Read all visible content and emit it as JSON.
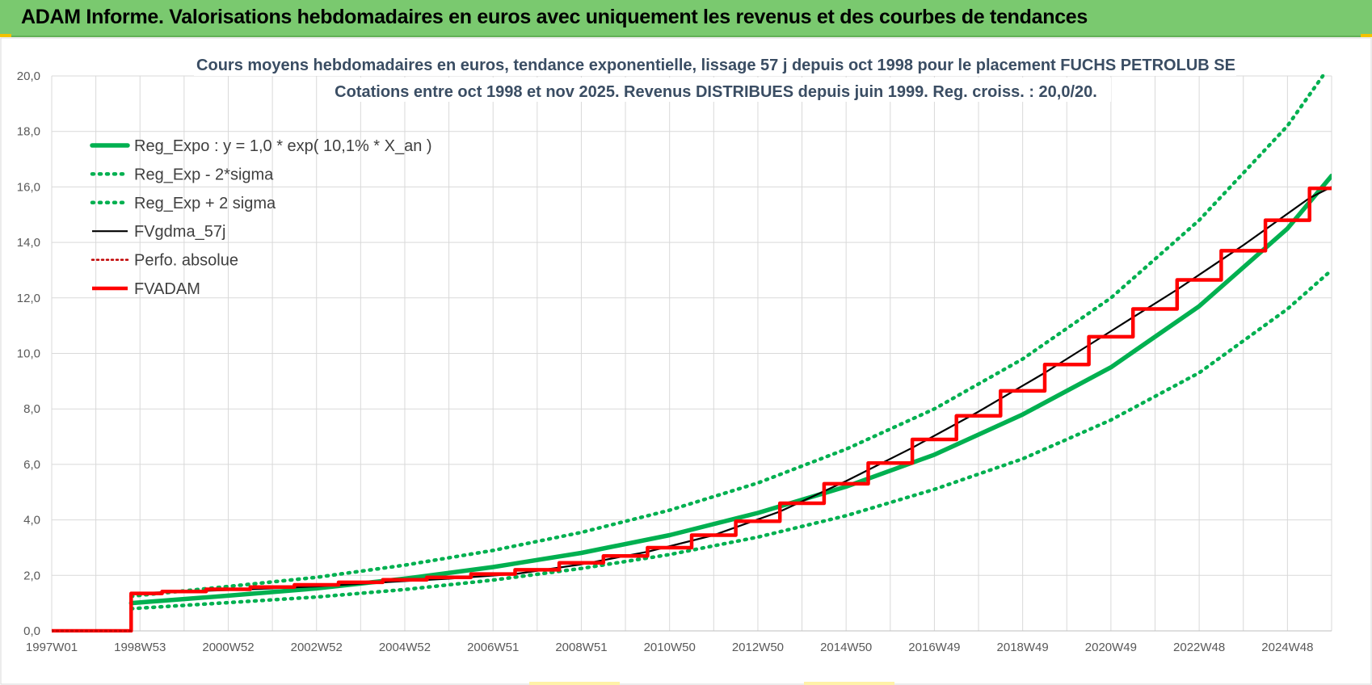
{
  "banner": {
    "title": "ADAM Informe. Valorisations hebdomadaires en euros avec uniquement les revenus et des courbes de tendances"
  },
  "colors": {
    "banner_bg": "#7ac96f",
    "trend_green": "#00b050",
    "gdma_black": "#000000",
    "adam_red": "#ff0000",
    "perf_red_dotted": "#c00000",
    "grid": "#d9d9d9"
  },
  "chart_data": {
    "type": "line",
    "title": "Cours moyens hebdomadaires en euros, tendance exponentielle, lissage 57 j depuis oct 1998 pour le placement FUCHS PETROLUB SE",
    "subtitle": "Cotations entre oct 1998 et nov 2025. Revenus DISTRIBUES depuis juin 1999. Reg. croiss. : 20,0/20.",
    "xlabel": "",
    "ylabel": "",
    "ylim": [
      0,
      20
    ],
    "y_ticks": [
      "0,0",
      "2,0",
      "4,0",
      "6,0",
      "8,0",
      "10,0",
      "12,0",
      "14,0",
      "16,0",
      "18,0",
      "20,0"
    ],
    "x_range": [
      1997.0,
      2026.0
    ],
    "x_ticks": [
      {
        "label": "1997W01",
        "x": 1997.0
      },
      {
        "label": "1998W53",
        "x": 1999.0
      },
      {
        "label": "2000W52",
        "x": 2001.0
      },
      {
        "label": "2002W52",
        "x": 2003.0
      },
      {
        "label": "2004W52",
        "x": 2005.0
      },
      {
        "label": "2006W51",
        "x": 2007.0
      },
      {
        "label": "2008W51",
        "x": 2009.0
      },
      {
        "label": "2010W50",
        "x": 2011.0
      },
      {
        "label": "2012W50",
        "x": 2013.0
      },
      {
        "label": "2014W50",
        "x": 2015.0
      },
      {
        "label": "2016W49",
        "x": 2017.0
      },
      {
        "label": "2018W49",
        "x": 2019.0
      },
      {
        "label": "2020W49",
        "x": 2021.0
      },
      {
        "label": "2022W48",
        "x": 2023.0
      },
      {
        "label": "2024W48",
        "x": 2025.0
      }
    ],
    "grid": true,
    "legend_position": "top-left",
    "legend": [
      "Reg_Expo : y = 1,0 * exp( 10,1% *  X_an )",
      "Reg_Exp - 2*sigma",
      "Reg_Exp + 2 sigma",
      "FVgdma_57j",
      "Perfo. absolue",
      "FVADAM"
    ],
    "series": [
      {
        "name": "Reg_Expo : y = 1,0 * exp( 10,1% *  X_an )",
        "style": "solid",
        "color": "#00b050",
        "x": [
          1998.8,
          2001,
          2003,
          2005,
          2007,
          2009,
          2011,
          2013,
          2015,
          2017,
          2019,
          2021,
          2023,
          2025,
          2026
        ],
        "values": [
          1.0,
          1.27,
          1.53,
          1.88,
          2.3,
          2.81,
          3.45,
          4.25,
          5.2,
          6.35,
          7.8,
          9.5,
          11.7,
          14.5,
          16.4
        ]
      },
      {
        "name": "Reg_Exp - 2*sigma",
        "style": "dotted",
        "color": "#00b050",
        "x": [
          1998.8,
          2001,
          2003,
          2005,
          2007,
          2009,
          2011,
          2013,
          2015,
          2017,
          2019,
          2021,
          2023,
          2025,
          2026
        ],
        "values": [
          0.8,
          1.02,
          1.22,
          1.49,
          1.83,
          2.25,
          2.75,
          3.38,
          4.15,
          5.1,
          6.2,
          7.6,
          9.3,
          11.6,
          13.0
        ]
      },
      {
        "name": "Reg_Exp + 2 sigma",
        "style": "dotted",
        "color": "#00b050",
        "x": [
          1998.8,
          2001,
          2003,
          2005,
          2007,
          2009,
          2011,
          2013,
          2015,
          2017,
          2019,
          2021,
          2023,
          2025,
          2025.8
        ],
        "values": [
          1.25,
          1.6,
          1.93,
          2.37,
          2.9,
          3.55,
          4.35,
          5.33,
          6.55,
          8.0,
          9.8,
          12.0,
          14.8,
          18.2,
          20.0
        ]
      },
      {
        "name": "FVgdma_57j",
        "style": "solid",
        "color": "#000000",
        "x": [
          1997.0,
          1998.8,
          1998.8,
          2000,
          2001.5,
          2003,
          2004.5,
          2006,
          2007.5,
          2009,
          2010.5,
          2012,
          2013.5,
          2015,
          2016.5,
          2018,
          2019.5,
          2021,
          2022.5,
          2024,
          2025.5,
          2026
        ],
        "values": [
          0,
          0,
          1.35,
          1.42,
          1.5,
          1.6,
          1.75,
          1.88,
          2.05,
          2.4,
          2.85,
          3.45,
          4.3,
          5.4,
          6.6,
          7.9,
          9.3,
          10.8,
          12.3,
          13.9,
          15.6,
          16.0
        ]
      },
      {
        "name": "Perfo. absolue",
        "style": "dotted",
        "color": "#c00000",
        "x": [
          1997.0,
          1998.8
        ],
        "values": [
          0,
          0
        ]
      },
      {
        "name": "FVADAM",
        "style": "solid",
        "color": "#ff0000",
        "x": [
          1997.0,
          1998.8,
          1998.8,
          1999.5,
          1999.5,
          2000.5,
          2000.5,
          2001.5,
          2001.5,
          2002.5,
          2002.5,
          2003.5,
          2003.5,
          2004.5,
          2004.5,
          2005.5,
          2005.5,
          2006.5,
          2006.5,
          2007.5,
          2007.5,
          2008.5,
          2008.5,
          2009.5,
          2009.5,
          2010.5,
          2010.5,
          2011.5,
          2011.5,
          2012.5,
          2012.5,
          2013.5,
          2013.5,
          2014.5,
          2014.5,
          2015.5,
          2015.5,
          2016.5,
          2016.5,
          2017.5,
          2017.5,
          2018.5,
          2018.5,
          2019.5,
          2019.5,
          2020.5,
          2020.5,
          2021.5,
          2021.5,
          2022.5,
          2022.5,
          2023.5,
          2023.5,
          2024.5,
          2024.5,
          2025.5,
          2025.5,
          2026
        ],
        "values": [
          0,
          0,
          1.35,
          1.35,
          1.42,
          1.42,
          1.5,
          1.5,
          1.58,
          1.58,
          1.66,
          1.66,
          1.75,
          1.75,
          1.84,
          1.84,
          1.93,
          1.93,
          2.05,
          2.05,
          2.2,
          2.2,
          2.45,
          2.45,
          2.7,
          2.7,
          3.0,
          3.0,
          3.45,
          3.45,
          3.95,
          3.95,
          4.6,
          4.6,
          5.3,
          5.3,
          6.05,
          6.05,
          6.9,
          6.9,
          7.75,
          7.75,
          8.65,
          8.65,
          9.6,
          9.6,
          10.6,
          10.6,
          11.6,
          11.6,
          12.65,
          12.65,
          13.7,
          13.7,
          14.8,
          14.8,
          15.95,
          15.95
        ]
      }
    ]
  }
}
